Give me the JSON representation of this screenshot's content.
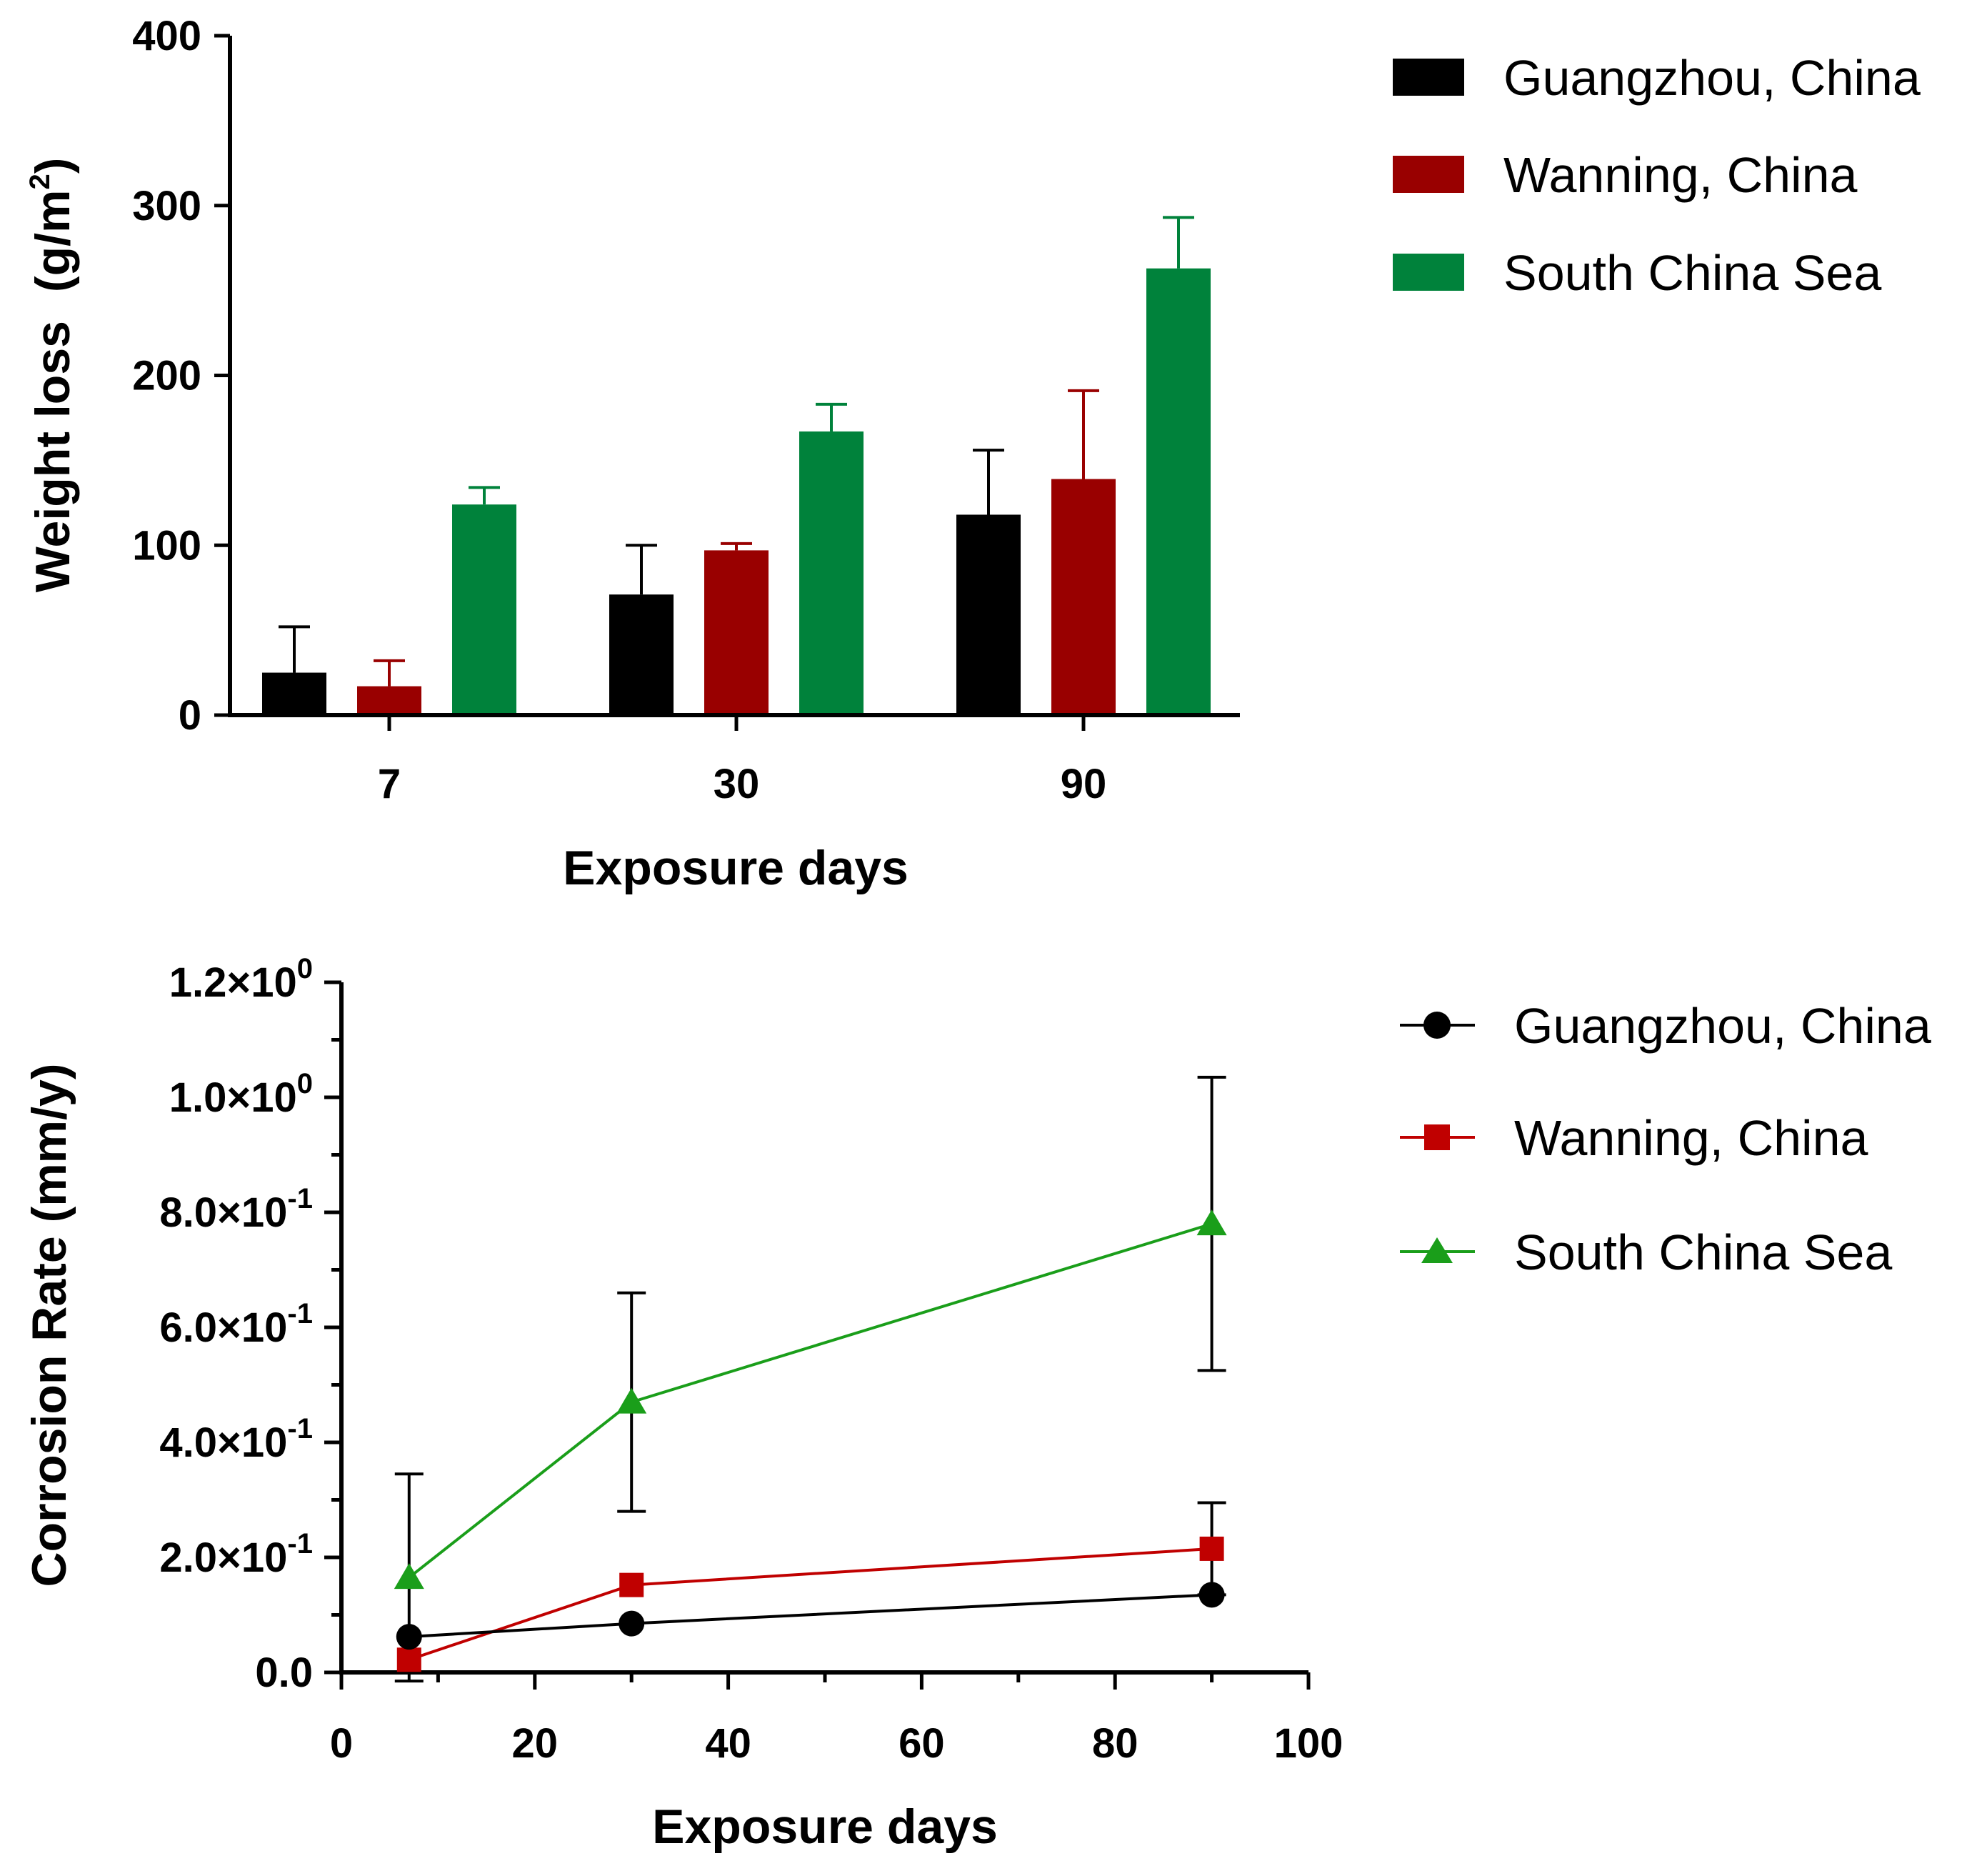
{
  "colors": {
    "guangzhou": "#000000",
    "wanning": "#990000",
    "south_china_sea": "#00823B",
    "wanning_line": "#C00000",
    "south_china_sea_line": "#1A9E1A"
  },
  "chart_data": [
    {
      "type": "bar",
      "xlabel": "Exposure days",
      "ylabel": "Weight loss",
      "ylabel_unit": "(g/m",
      "ylabel_unit_sup": "2",
      "ylabel_unit_close": ")",
      "ylim": [
        0,
        400
      ],
      "yticks": [
        0,
        100,
        200,
        300,
        400
      ],
      "categories": [
        "7",
        "30",
        "90"
      ],
      "legend_position": "top-right",
      "series": [
        {
          "name": "Guangzhou, China",
          "color_key": "guangzhou",
          "values": [
            25,
            71,
            118
          ],
          "errors": [
            27,
            29,
            38
          ]
        },
        {
          "name": "Wanning, China",
          "color_key": "wanning",
          "values": [
            17,
            97,
            139
          ],
          "errors": [
            15,
            4,
            52
          ]
        },
        {
          "name": "South China Sea",
          "color_key": "south_china_sea",
          "values": [
            124,
            167,
            263
          ],
          "errors": [
            10,
            16,
            30
          ]
        }
      ]
    },
    {
      "type": "line",
      "xlabel": "Exposure days",
      "ylabel": "Corrosion Rate (mm/y)",
      "xlim": [
        0,
        100
      ],
      "xticks": [
        0,
        20,
        40,
        60,
        80,
        100
      ],
      "ylim": [
        0,
        1.2
      ],
      "yticks": [
        0,
        0.2,
        0.4,
        0.6,
        0.8,
        1.0,
        1.2
      ],
      "ytick_labels": [
        {
          "mantissa": "0.0",
          "exp": ""
        },
        {
          "mantissa": "2.0×10",
          "exp": "-1"
        },
        {
          "mantissa": "4.0×10",
          "exp": "-1"
        },
        {
          "mantissa": "6.0×10",
          "exp": "-1"
        },
        {
          "mantissa": "8.0×10",
          "exp": "-1"
        },
        {
          "mantissa": "1.0×10",
          "exp": "0"
        },
        {
          "mantissa": "1.2×10",
          "exp": "0"
        }
      ],
      "legend_position": "top-right",
      "series": [
        {
          "name": "Guangzhou, China",
          "marker": "circle",
          "color_key": "guangzhou",
          "x": [
            7,
            30,
            90
          ],
          "y": [
            0.062,
            0.085,
            0.135
          ],
          "errors": [
            0,
            0,
            0
          ]
        },
        {
          "name": "Wanning, China",
          "marker": "square",
          "color_key": "wanning_line",
          "x": [
            7,
            30,
            90
          ],
          "y": [
            0.022,
            0.152,
            0.215
          ],
          "errors": [
            0,
            0,
            0.08
          ]
        },
        {
          "name": "South China Sea",
          "marker": "triangle",
          "color_key": "south_china_sea_line",
          "x": [
            7,
            30,
            90
          ],
          "y": [
            0.165,
            0.47,
            0.78
          ],
          "errors": [
            0.18,
            0.19,
            0.255
          ]
        }
      ]
    }
  ]
}
